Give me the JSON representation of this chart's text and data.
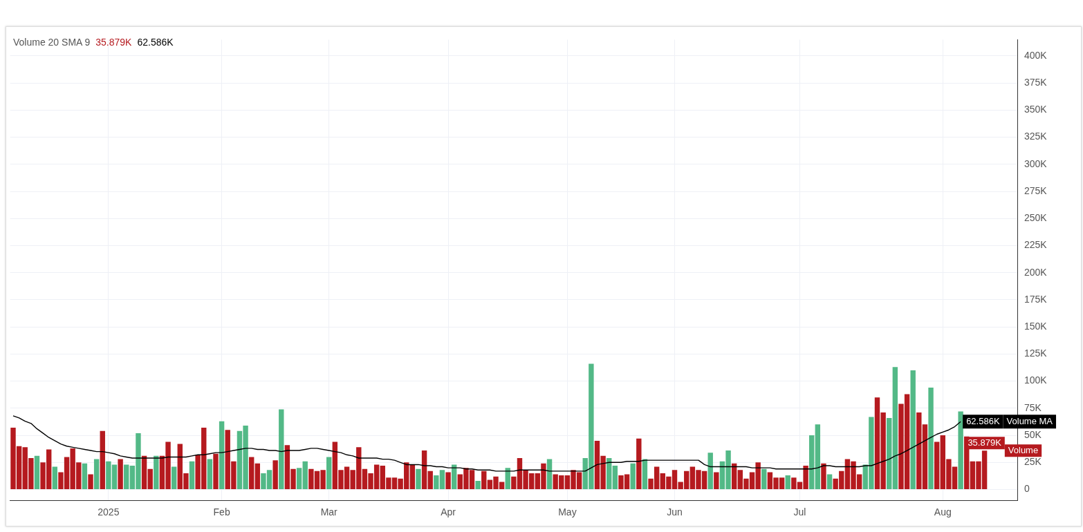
{
  "chart_data": {
    "type": "bar",
    "categories": [
      null,
      null,
      null,
      null,
      null,
      null,
      null,
      null,
      null,
      null,
      null,
      null,
      null,
      null,
      null,
      null,
      "2025",
      null,
      null,
      null,
      null,
      null,
      null,
      null,
      null,
      null,
      null,
      null,
      null,
      null,
      null,
      null,
      null,
      null,
      null,
      "Feb",
      null,
      null,
      null,
      null,
      null,
      null,
      null,
      null,
      null,
      null,
      null,
      null,
      null,
      null,
      null,
      null,
      null,
      "Mar",
      null,
      null,
      null,
      null,
      null,
      null,
      null,
      null,
      null,
      null,
      null,
      null,
      null,
      null,
      null,
      null,
      null,
      null,
      null,
      "Apr",
      null,
      null,
      null,
      null,
      null,
      null,
      null,
      null,
      null,
      null,
      null,
      null,
      null,
      null,
      null,
      null,
      null,
      null,
      null,
      "May",
      null,
      null,
      null,
      null,
      null,
      null,
      null,
      null,
      null,
      null,
      null,
      null,
      null,
      null,
      null,
      null,
      null,
      "Jun",
      null,
      null,
      null,
      null,
      null,
      null,
      null,
      null,
      null,
      null,
      null,
      null,
      null,
      null,
      null,
      null,
      null,
      null,
      null,
      null,
      "Jul",
      null,
      null,
      null,
      null,
      null,
      null,
      null,
      null,
      null,
      null,
      null,
      null,
      null,
      null,
      null,
      null,
      null,
      null,
      null,
      null,
      null,
      null,
      null,
      "Aug",
      null,
      null,
      null,
      null,
      null,
      null,
      null
    ],
    "series": [
      {
        "name": "Volume",
        "values": [
          57,
          40,
          39,
          29,
          31,
          25,
          37,
          21,
          16,
          30,
          38,
          25,
          24,
          14,
          28,
          54,
          26,
          23,
          28,
          23,
          22,
          52,
          31,
          19,
          31,
          31,
          44,
          21,
          42,
          15,
          26,
          32,
          57,
          28,
          33,
          63,
          55,
          26,
          54,
          59,
          30,
          24,
          15,
          18,
          27,
          74,
          41,
          19,
          20,
          26,
          19,
          17,
          18,
          30,
          44,
          18,
          21,
          18,
          39,
          19,
          15,
          23,
          22,
          11,
          11,
          10,
          25,
          23,
          19,
          36,
          17,
          13,
          18,
          16,
          23,
          14,
          20,
          18,
          8,
          17,
          9,
          12,
          7,
          20,
          12,
          29,
          18,
          15,
          15,
          24,
          28,
          14,
          13,
          13,
          18,
          16,
          29,
          116,
          45,
          31,
          29,
          22,
          13,
          14,
          24,
          47,
          28,
          10,
          21,
          15,
          12,
          18,
          7,
          17,
          21,
          18,
          17,
          34,
          16,
          26,
          36,
          24,
          18,
          10,
          16,
          25,
          19,
          16,
          11,
          11,
          13,
          11,
          7,
          22,
          50,
          60,
          24,
          14,
          10,
          17,
          28,
          26,
          14,
          23,
          67,
          85,
          71,
          66,
          113,
          79,
          88,
          110,
          71,
          60,
          94,
          44,
          50,
          28,
          21,
          72,
          49,
          26,
          26,
          35.879
        ],
        "colors": [
          "#b51a1f",
          "#b51a1f",
          "#b51a1f",
          "#b51a1f",
          "#53b987",
          "#b51a1f",
          "#b51a1f",
          "#53b987",
          "#b51a1f",
          "#b51a1f",
          "#b51a1f",
          "#b51a1f",
          "#53b987",
          "#b51a1f",
          "#53b987",
          "#b51a1f",
          "#53b987",
          "#53b987",
          "#b51a1f",
          "#53b987",
          "#53b987",
          "#53b987",
          "#b51a1f",
          "#b51a1f",
          "#53b987",
          "#b51a1f",
          "#b51a1f",
          "#53b987",
          "#b51a1f",
          "#b51a1f",
          "#53b987",
          "#b51a1f",
          "#b51a1f",
          "#53b987",
          "#b51a1f",
          "#53b987",
          "#b51a1f",
          "#b51a1f",
          "#53b987",
          "#53b987",
          "#b51a1f",
          "#b51a1f",
          "#53b987",
          "#53b987",
          "#b51a1f",
          "#53b987",
          "#b51a1f",
          "#b51a1f",
          "#53b987",
          "#53b987",
          "#b51a1f",
          "#b51a1f",
          "#b51a1f",
          "#53b987",
          "#b51a1f",
          "#b51a1f",
          "#b51a1f",
          "#b51a1f",
          "#b51a1f",
          "#b51a1f",
          "#b51a1f",
          "#b51a1f",
          "#b51a1f",
          "#b51a1f",
          "#b51a1f",
          "#b51a1f",
          "#b51a1f",
          "#b51a1f",
          "#53b987",
          "#b51a1f",
          "#b51a1f",
          "#53b987",
          "#53b987",
          "#b51a1f",
          "#53b987",
          "#b51a1f",
          "#b51a1f",
          "#b51a1f",
          "#53b987",
          "#b51a1f",
          "#b51a1f",
          "#b51a1f",
          "#b51a1f",
          "#53b987",
          "#b51a1f",
          "#b51a1f",
          "#b51a1f",
          "#b51a1f",
          "#b51a1f",
          "#b51a1f",
          "#53b987",
          "#b51a1f",
          "#b51a1f",
          "#b51a1f",
          "#b51a1f",
          "#b51a1f",
          "#53b987",
          "#53b987",
          "#b51a1f",
          "#b51a1f",
          "#53b987",
          "#53b987",
          "#b51a1f",
          "#b51a1f",
          "#53b987",
          "#b51a1f",
          "#53b987",
          "#b51a1f",
          "#b51a1f",
          "#b51a1f",
          "#b51a1f",
          "#b51a1f",
          "#b51a1f",
          "#b51a1f",
          "#b51a1f",
          "#b51a1f",
          "#b51a1f",
          "#53b987",
          "#b51a1f",
          "#53b987",
          "#53b987",
          "#b51a1f",
          "#b51a1f",
          "#b51a1f",
          "#b51a1f",
          "#b51a1f",
          "#53b987",
          "#b51a1f",
          "#b51a1f",
          "#b51a1f",
          "#53b987",
          "#b51a1f",
          "#b51a1f",
          "#b51a1f",
          "#53b987",
          "#53b987",
          "#b51a1f",
          "#53b987",
          "#b51a1f",
          "#b51a1f",
          "#b51a1f",
          "#b51a1f",
          "#b51a1f",
          "#53b987",
          "#53b987",
          "#b51a1f",
          "#b51a1f",
          "#53b987",
          "#53b987",
          "#b51a1f",
          "#b51a1f",
          "#53b987",
          "#b51a1f",
          "#b51a1f",
          "#53b987",
          "#b51a1f",
          "#b51a1f",
          "#b51a1f",
          "#b51a1f",
          "#53b987",
          "#b51a1f",
          "#b51a1f",
          "#b51a1f",
          "#b51a1f"
        ],
        "value_labels": [
          null,
          null,
          null,
          null,
          null,
          null,
          null,
          null,
          null,
          null,
          null,
          null,
          null,
          null,
          null,
          null,
          null,
          null,
          null,
          null,
          null,
          null,
          null,
          null,
          null,
          null,
          null,
          null,
          null,
          null,
          null,
          null,
          null,
          null,
          null,
          null,
          null,
          null,
          null,
          null,
          null,
          null,
          null,
          null,
          null,
          null,
          null,
          null,
          null,
          null,
          null,
          null,
          null,
          null,
          null,
          null,
          null,
          null,
          null,
          null,
          null,
          null,
          null,
          null,
          null,
          null,
          null,
          null,
          null,
          null,
          null,
          null,
          null,
          null,
          null,
          null,
          null,
          null,
          null,
          null,
          null,
          null,
          null,
          null,
          null,
          null,
          null,
          null,
          null,
          null,
          null,
          null,
          null,
          null,
          null,
          null,
          null,
          null,
          null,
          null,
          null,
          null,
          null,
          null,
          null,
          null,
          null,
          null,
          null,
          null,
          null,
          null,
          null,
          null,
          null,
          null,
          null,
          null,
          null,
          null,
          null,
          null,
          null,
          null,
          null,
          null,
          null,
          null,
          null,
          null,
          null,
          null,
          null,
          null,
          null,
          null,
          null,
          null,
          null,
          null,
          null,
          null,
          null,
          null,
          null,
          null,
          null,
          null,
          null,
          null,
          null,
          null,
          null,
          null,
          null,
          null,
          null,
          null,
          null,
          null,
          null,
          null,
          null,
          "35.879K"
        ]
      },
      {
        "name": "Volume MA",
        "type": "line",
        "color": "#000000",
        "values": [
          68,
          66,
          63,
          61,
          56,
          52,
          48,
          45,
          42,
          40,
          39,
          38,
          37,
          36,
          35,
          35,
          34,
          33,
          31,
          30,
          29,
          29,
          29,
          29,
          29,
          29,
          30,
          30,
          30,
          30,
          31,
          32,
          32,
          33,
          34,
          34,
          35,
          36,
          37,
          38,
          38,
          37,
          37,
          36,
          36,
          35,
          36,
          36,
          36,
          37,
          38,
          38,
          37,
          36,
          35,
          34,
          32,
          31,
          29,
          29,
          29,
          29,
          28,
          28,
          27,
          25,
          23,
          23,
          23,
          22,
          22,
          21,
          21,
          20,
          20,
          20,
          19,
          19,
          18,
          18,
          18,
          17,
          17,
          17,
          17,
          18,
          18,
          18,
          18,
          18,
          17,
          17,
          17,
          17,
          17,
          17,
          17,
          20,
          23,
          24,
          25,
          25,
          25,
          26,
          26,
          26,
          27,
          27,
          27,
          27,
          27,
          27,
          27,
          27,
          27,
          27,
          23,
          21,
          21,
          21,
          21,
          21,
          21,
          21,
          20,
          20,
          20,
          20,
          19,
          19,
          19,
          19,
          19,
          19,
          19,
          20,
          22,
          22,
          21,
          21,
          21,
          21,
          21,
          22,
          22,
          24,
          26,
          28,
          31,
          33,
          36,
          39,
          42,
          45,
          48,
          51,
          53,
          55,
          58,
          62.586,
          null,
          null,
          null,
          null
        ],
        "value_labels": [
          null,
          null,
          null,
          null,
          null,
          null,
          null,
          null,
          null,
          null,
          null,
          null,
          null,
          null,
          null,
          null,
          null,
          null,
          null,
          null,
          null,
          null,
          null,
          null,
          null,
          null,
          null,
          null,
          null,
          null,
          null,
          null,
          null,
          null,
          null,
          null,
          null,
          null,
          null,
          null,
          null,
          null,
          null,
          null,
          null,
          null,
          null,
          null,
          null,
          null,
          null,
          null,
          null,
          null,
          null,
          null,
          null,
          null,
          null,
          null,
          null,
          null,
          null,
          null,
          null,
          null,
          null,
          null,
          null,
          null,
          null,
          null,
          null,
          null,
          null,
          null,
          null,
          null,
          null,
          null,
          null,
          null,
          null,
          null,
          null,
          null,
          null,
          null,
          null,
          null,
          null,
          null,
          null,
          null,
          null,
          null,
          null,
          null,
          null,
          null,
          null,
          null,
          null,
          null,
          null,
          null,
          null,
          null,
          null,
          null,
          null,
          null,
          null,
          null,
          null,
          null,
          null,
          null,
          null,
          null,
          null,
          null,
          null,
          null,
          null,
          null,
          null,
          null,
          null,
          null,
          null,
          null,
          null,
          null,
          null,
          null,
          null,
          null,
          null,
          null,
          null,
          null,
          null,
          null,
          null,
          null,
          null,
          null,
          null,
          null,
          null,
          null,
          null,
          null,
          null,
          null,
          null,
          null,
          null,
          "62.586K",
          null,
          null,
          null,
          null
        ]
      }
    ],
    "ylim": [
      -10,
      415
    ],
    "yticks": [
      0,
      {
        "value": 25,
        "label": "25K"
      },
      {
        "value": 50,
        "label": "50K"
      },
      {
        "value": 75,
        "label": "75K"
      },
      {
        "value": 100,
        "label": "100K"
      },
      {
        "value": 125,
        "label": "125K"
      },
      {
        "value": 150,
        "label": "150K"
      },
      {
        "value": 175,
        "label": "175K"
      },
      {
        "value": 200,
        "label": "200K"
      },
      {
        "value": 225,
        "label": "225K"
      },
      {
        "value": 250,
        "label": "250K"
      },
      {
        "value": 275,
        "label": "275K"
      },
      {
        "value": 300,
        "label": "300K"
      },
      {
        "value": 325,
        "label": "325K"
      },
      {
        "value": 350,
        "label": "350K"
      },
      {
        "value": 375,
        "label": "375K"
      },
      {
        "value": 400,
        "label": "400K"
      }
    ],
    "grid": true,
    "annotations": [
      "Volume 20 SMA 9",
      "35.879K",
      "62.586K"
    ]
  }
}
